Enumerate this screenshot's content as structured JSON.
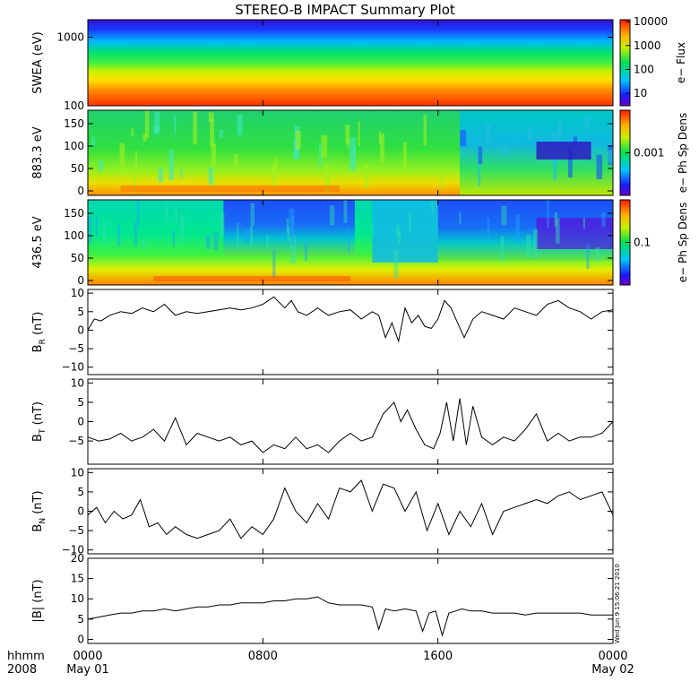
{
  "title": "STEREO-B IMPACT Summary Plot",
  "timestamp_note": "Wed Jun  9 15:06:21 2010",
  "time_axis": {
    "hour_label": "hhmm",
    "year_label": "2008",
    "ticks": [
      {
        "t": 0,
        "label": "0000",
        "date": "May 01"
      },
      {
        "t": 8,
        "label": "0800",
        "date": ""
      },
      {
        "t": 16,
        "label": "1600",
        "date": ""
      },
      {
        "t": 24,
        "label": "0000",
        "date": "May 02"
      }
    ],
    "range_hours": [
      0,
      24
    ]
  },
  "chart_data": [
    {
      "type": "heatmap",
      "ylabel": "SWEA (eV)",
      "yscale": "log",
      "ylim": [
        100,
        1800
      ],
      "yticks": [
        {
          "v": 100,
          "label": "100"
        },
        {
          "v": 1000,
          "label": "1000"
        }
      ],
      "colorbar": {
        "label": "e− Flux",
        "scale": "log",
        "range": [
          3,
          12000
        ],
        "ticks": [
          {
            "v": 10,
            "label": "10"
          },
          {
            "v": 100,
            "label": "100"
          },
          {
            "v": 1000,
            "label": "1000"
          },
          {
            "v": 10000,
            "label": "10000"
          }
        ]
      },
      "description_levels": {
        "low_energy_flux": 10000,
        "mid_energy_flux": 1000,
        "high_energy_flux": 10
      }
    },
    {
      "type": "heatmap",
      "ylabel": "883.3 eV",
      "ylim": [
        -10,
        180
      ],
      "yticks": [
        {
          "v": 0,
          "label": "0"
        },
        {
          "v": 50,
          "label": "50"
        },
        {
          "v": 100,
          "label": "100"
        },
        {
          "v": 150,
          "label": "150"
        }
      ],
      "colorbar": {
        "label": "e− Ph Sp Dens",
        "scale": "log",
        "range": [
          0.0001,
          0.01
        ],
        "ticks": [
          {
            "v": 0.001,
            "label": "0.001"
          }
        ]
      }
    },
    {
      "type": "heatmap",
      "ylabel": "436.5 eV",
      "ylim": [
        -10,
        180
      ],
      "yticks": [
        {
          "v": 0,
          "label": "0"
        },
        {
          "v": 50,
          "label": "50"
        },
        {
          "v": 100,
          "label": "100"
        },
        {
          "v": 150,
          "label": "150"
        }
      ],
      "colorbar": {
        "label": "e− Ph Sp Dens",
        "scale": "log",
        "range": [
          0.02,
          0.5
        ],
        "ticks": [
          {
            "v": 0.1,
            "label": "0.1"
          }
        ]
      }
    },
    {
      "type": "line",
      "ylabel": "B",
      "ylabel_sub": "R",
      "ylabel_unit": "(nT)",
      "ylim": [
        -12,
        11
      ],
      "yticks": [
        {
          "v": -10,
          "label": "−10"
        },
        {
          "v": -5,
          "label": "−5"
        },
        {
          "v": 0,
          "label": "0"
        },
        {
          "v": 5,
          "label": "5"
        },
        {
          "v": 10,
          "label": "10"
        }
      ],
      "series": [
        {
          "x": [
            0,
            0.3,
            0.6,
            1,
            1.5,
            2,
            2.5,
            3,
            3.5,
            4,
            4.5,
            5,
            5.5,
            6,
            6.5,
            7,
            7.5,
            8,
            8.5,
            9,
            9.3,
            9.6,
            10,
            10.5,
            11,
            11.5,
            12,
            12.5,
            13,
            13.3,
            13.6,
            13.9,
            14.2,
            14.5,
            14.8,
            15.1,
            15.4,
            15.7,
            16,
            16.3,
            16.6,
            16.9,
            17.2,
            17.6,
            18,
            18.5,
            19,
            19.5,
            20,
            20.5,
            21,
            21.5,
            22,
            22.5,
            23,
            23.5,
            24
          ],
          "y": [
            0,
            3,
            2.5,
            4,
            5,
            4.5,
            6,
            5,
            7,
            4,
            5,
            4.5,
            5,
            5.5,
            6,
            5.5,
            6,
            7,
            9,
            6,
            8,
            5,
            4,
            6,
            4,
            5,
            5.5,
            3,
            5,
            4,
            -2,
            2,
            -3,
            6,
            2,
            4,
            1,
            0.5,
            3,
            8,
            6,
            2,
            -2,
            3,
            5,
            4,
            3,
            6,
            5,
            4,
            7,
            8,
            6,
            5,
            3,
            5,
            5.5
          ]
        }
      ]
    },
    {
      "type": "line",
      "ylabel": "B",
      "ylabel_sub": "T",
      "ylabel_unit": "(nT)",
      "ylim": [
        -11,
        11
      ],
      "yticks": [
        {
          "v": -5,
          "label": "−5"
        },
        {
          "v": 0,
          "label": "0"
        },
        {
          "v": 5,
          "label": "5"
        },
        {
          "v": 10,
          "label": "10"
        }
      ],
      "series": [
        {
          "x": [
            0,
            0.5,
            1,
            1.5,
            2,
            2.5,
            3,
            3.5,
            4,
            4.5,
            5,
            5.5,
            6,
            6.5,
            7,
            7.5,
            8,
            8.5,
            9,
            9.5,
            10,
            10.5,
            11,
            11.5,
            12,
            12.5,
            13,
            13.5,
            14,
            14.3,
            14.6,
            15,
            15.4,
            15.8,
            16.1,
            16.4,
            16.7,
            17,
            17.3,
            17.6,
            18,
            18.5,
            19,
            19.5,
            20,
            20.5,
            21,
            21.5,
            22,
            22.5,
            23,
            23.5,
            24
          ],
          "y": [
            -4,
            -5,
            -4.5,
            -3,
            -5,
            -4,
            -2,
            -5,
            1,
            -6,
            -3,
            -4,
            -5,
            -4,
            -6,
            -5,
            -8,
            -6,
            -7,
            -4,
            -7,
            -6,
            -8,
            -5,
            -3,
            -5,
            -4,
            2,
            5,
            0,
            3,
            -2,
            -6,
            -7,
            -3,
            5,
            -5,
            6,
            -6,
            4,
            -4,
            -6,
            -4,
            -5,
            -2,
            2,
            -5,
            -3,
            -5,
            -4,
            -4,
            -3,
            0
          ]
        }
      ]
    },
    {
      "type": "line",
      "ylabel": "B",
      "ylabel_sub": "N",
      "ylabel_unit": "(nT)",
      "ylim": [
        -11,
        11
      ],
      "yticks": [
        {
          "v": -10,
          "label": "−10"
        },
        {
          "v": -5,
          "label": "−5"
        },
        {
          "v": 0,
          "label": "0"
        },
        {
          "v": 5,
          "label": "5"
        },
        {
          "v": 10,
          "label": "10"
        }
      ],
      "series": [
        {
          "x": [
            0,
            0.4,
            0.8,
            1.2,
            1.6,
            2,
            2.4,
            2.8,
            3.2,
            3.6,
            4,
            4.5,
            5,
            5.5,
            6,
            6.5,
            7,
            7.5,
            8,
            8.5,
            9,
            9.5,
            10,
            10.5,
            11,
            11.5,
            12,
            12.5,
            13,
            13.5,
            14,
            14.5,
            15,
            15.5,
            16,
            16.5,
            17,
            17.5,
            18,
            18.5,
            19,
            19.5,
            20,
            20.5,
            21,
            21.5,
            22,
            22.5,
            23,
            23.5,
            24
          ],
          "y": [
            -1,
            1,
            -3,
            0,
            -2,
            -1,
            3,
            -4,
            -3,
            -6,
            -4,
            -6,
            -7,
            -6,
            -5,
            -2,
            -7,
            -4,
            -6,
            -2,
            6,
            0,
            -3,
            2,
            -2,
            6,
            5,
            8,
            0,
            7,
            6,
            0,
            5,
            -5,
            2,
            -6,
            0,
            -4,
            2,
            -6,
            0,
            1,
            2,
            3,
            2,
            4,
            5,
            3,
            4,
            5,
            -1
          ]
        }
      ]
    },
    {
      "type": "line",
      "ylabel": "|B|",
      "ylabel_unit": "(nT)",
      "ylim": [
        -1,
        20
      ],
      "yticks": [
        {
          "v": 0,
          "label": "0"
        },
        {
          "v": 5,
          "label": "5"
        },
        {
          "v": 10,
          "label": "10"
        },
        {
          "v": 15,
          "label": "15"
        },
        {
          "v": 20,
          "label": "20"
        }
      ],
      "series": [
        {
          "x": [
            0,
            0.5,
            1,
            1.5,
            2,
            2.5,
            3,
            3.5,
            4,
            4.5,
            5,
            5.5,
            6,
            6.5,
            7,
            7.5,
            8,
            8.5,
            9,
            9.5,
            10,
            10.5,
            11,
            11.5,
            12,
            12.5,
            13,
            13.3,
            13.6,
            14,
            14.5,
            15,
            15.3,
            15.6,
            15.9,
            16.2,
            16.5,
            16.8,
            17.1,
            17.5,
            18,
            18.5,
            19,
            19.5,
            20,
            20.5,
            21,
            21.5,
            22,
            22.5,
            23,
            23.5,
            24
          ],
          "y": [
            5,
            5.5,
            6,
            6.5,
            6.5,
            7,
            7,
            7.5,
            7,
            7.5,
            8,
            8,
            8.5,
            8.5,
            9,
            9,
            9,
            9.5,
            9.5,
            10,
            10,
            10.5,
            9,
            8.5,
            8.5,
            8.5,
            8,
            2.5,
            7.5,
            7,
            7.5,
            7,
            2,
            6.5,
            7,
            1,
            6.5,
            7,
            7.5,
            7,
            7,
            6.5,
            6.5,
            6.5,
            6,
            6.5,
            6.5,
            6.5,
            6.5,
            6.5,
            6,
            6,
            6
          ]
        }
      ]
    }
  ],
  "colors": {
    "background": "#ffffff",
    "axes": "#000000",
    "line": "#000000"
  }
}
